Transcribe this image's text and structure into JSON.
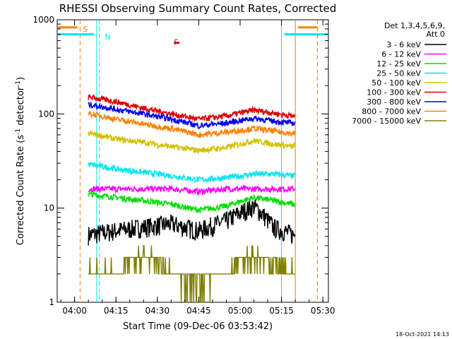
{
  "chart_data": {
    "type": "line",
    "title": "RHESSI Observing Summary Count Rates, Corrected",
    "xlabel": "Start Time (09-Dec-06 03:53:42)",
    "ylabel_main": "Corrected Count Rate (s",
    "ylabel_sup1": "-1",
    "ylabel_mid": " detector",
    "ylabel_sup2": "-1",
    "ylabel_end": ")",
    "y_scale": "log",
    "ylim": [
      1,
      1000
    ],
    "xlim": [
      "03:53:42",
      "05:32:00"
    ],
    "x_ticks": [
      "04:00",
      "04:15",
      "04:30",
      "04:45",
      "05:00",
      "05:15",
      "05:30"
    ],
    "y_ticks": [
      "1",
      "10",
      "100",
      "1000"
    ],
    "grid": false,
    "legend_position": "right",
    "legend_header": [
      "Det 1,3,4,5,6,9,",
      "Att 0"
    ],
    "footer": "18-Oct-2021 14:13",
    "annotations": [
      {
        "label": "S",
        "time": "04:02",
        "color": "#ff8000"
      },
      {
        "label": "N",
        "time": "04:10",
        "color": "#00e5ee"
      },
      {
        "label": "F",
        "time": "04:35",
        "color": "#dd0000"
      }
    ],
    "vertical_markers": [
      {
        "time": "04:02",
        "style": "dashed",
        "color": "#ff8000"
      },
      {
        "time": "04:08",
        "style": "solid",
        "color": "#00e5ee"
      },
      {
        "time": "04:09",
        "style": "dashed",
        "color": "#00e5ee"
      },
      {
        "time": "05:15",
        "style": "solid",
        "color": "#00e5ee"
      },
      {
        "time": "05:20",
        "style": "solid",
        "color": "#e08000"
      },
      {
        "time": "05:28",
        "style": "dashed",
        "color": "#e08000"
      }
    ],
    "top_bars": [
      {
        "color": "#ff8000",
        "from": "03:53:42",
        "to": "04:01",
        "level": 830
      },
      {
        "color": "#00e5ee",
        "from": "03:53:42",
        "to": "04:07",
        "level": 700
      },
      {
        "color": "#00e5ee",
        "from": "05:16",
        "to": "05:32",
        "level": 700
      },
      {
        "color": "#ff8000",
        "from": "05:21",
        "to": "05:28",
        "level": 830
      }
    ],
    "flare_marker": {
      "from": "04:36",
      "to": "04:37",
      "level": 570
    },
    "times": [
      "04:06",
      "04:15",
      "04:25",
      "04:35",
      "04:45",
      "04:55",
      "05:05",
      "05:12",
      "05:19"
    ],
    "series": [
      {
        "name": "3 - 6 keV",
        "color": "#000000",
        "values": [
          5,
          5.5,
          6,
          6.5,
          5.5,
          7,
          10,
          6,
          5
        ]
      },
      {
        "name": "6 - 12 keV",
        "color": "#ff00ff",
        "values": [
          16,
          16,
          16,
          16,
          15,
          16,
          16,
          16,
          16
        ]
      },
      {
        "name": "12 - 25 keV",
        "color": "#00dd00",
        "values": [
          14,
          13,
          12,
          11,
          9.5,
          10.5,
          13,
          12,
          11
        ]
      },
      {
        "name": "25 - 50 keV",
        "color": "#00e5ee",
        "values": [
          29,
          26,
          24,
          22,
          20,
          21,
          23,
          23,
          22
        ]
      },
      {
        "name": "50 - 100 keV",
        "color": "#d4c000",
        "values": [
          62,
          54,
          50,
          45,
          41,
          44,
          52,
          48,
          45
        ]
      },
      {
        "name": "100 - 300 keV",
        "color": "#dd0000",
        "values": [
          150,
          135,
          115,
          100,
          88,
          95,
          110,
          102,
          95
        ]
      },
      {
        "name": "300 - 800 keV",
        "color": "#0000ee",
        "values": [
          125,
          112,
          100,
          88,
          75,
          80,
          90,
          84,
          80
        ]
      },
      {
        "name": "800 - 7000 keV",
        "color": "#ff8000",
        "values": [
          100,
          88,
          78,
          70,
          60,
          64,
          70,
          66,
          62
        ]
      },
      {
        "name": "7000 - 15000 keV",
        "color": "#808000",
        "values": [
          2,
          2,
          3,
          2,
          1.5,
          2,
          3,
          2.5,
          2
        ]
      }
    ]
  }
}
